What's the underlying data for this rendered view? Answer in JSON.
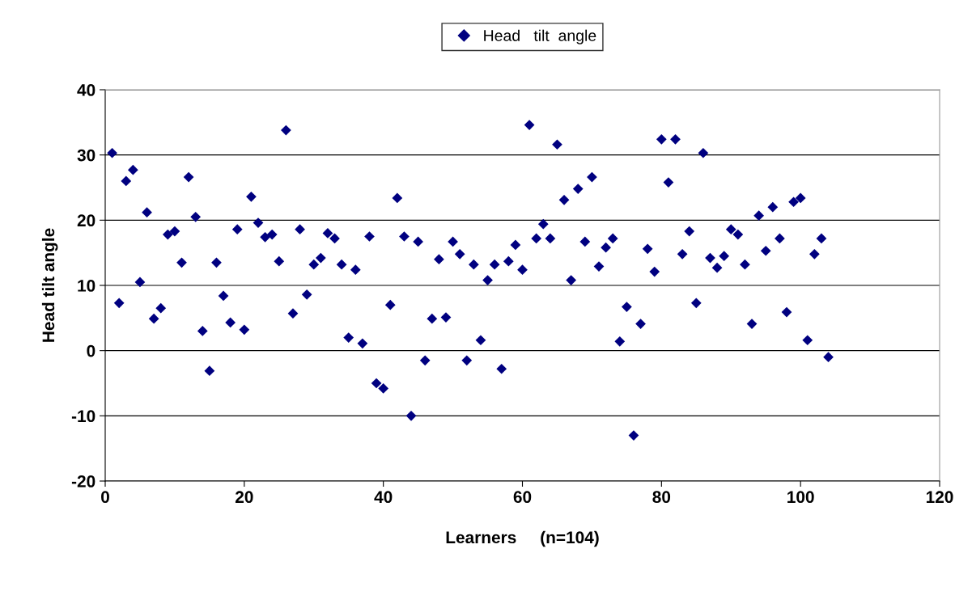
{
  "chart_data": {
    "type": "scatter",
    "xlabel": "Learners     (n=104)",
    "ylabel": "Head tilt angle",
    "x": [
      1,
      2,
      3,
      4,
      5,
      6,
      7,
      8,
      9,
      10,
      11,
      12,
      13,
      14,
      15,
      16,
      17,
      18,
      19,
      20,
      21,
      22,
      23,
      24,
      25,
      26,
      27,
      28,
      29,
      30,
      31,
      32,
      33,
      34,
      35,
      36,
      37,
      38,
      39,
      40,
      41,
      42,
      43,
      44,
      45,
      46,
      47,
      48,
      49,
      50,
      51,
      52,
      53,
      54,
      55,
      56,
      57,
      58,
      59,
      60,
      61,
      62,
      63,
      64,
      65,
      66,
      67,
      68,
      69,
      70,
      71,
      72,
      73,
      74,
      75,
      76,
      77,
      78,
      79,
      80,
      81,
      82,
      83,
      84,
      85,
      86,
      87,
      88,
      89,
      90,
      91,
      92,
      93,
      94,
      95,
      96,
      97,
      98,
      99,
      100,
      101,
      102,
      103,
      104
    ],
    "series": [
      {
        "name": "Head   tilt  angle",
        "color": "#000080",
        "values": [
          30.3,
          7.3,
          26,
          27.7,
          10.5,
          21.2,
          4.9,
          6.5,
          17.8,
          18.3,
          13.5,
          26.6,
          20.5,
          3,
          -3.1,
          13.5,
          8.4,
          4.3,
          18.6,
          3.2,
          23.6,
          19.6,
          17.4,
          17.8,
          13.7,
          33.8,
          5.7,
          18.6,
          8.6,
          13.2,
          14.2,
          18,
          17.2,
          13.2,
          2,
          12.4,
          1.1,
          17.5,
          -5,
          -5.8,
          7,
          23.4,
          17.5,
          -10,
          16.7,
          -1.5,
          4.9,
          14,
          5.1,
          16.7,
          14.8,
          -1.5,
          13.2,
          1.6,
          10.8,
          13.2,
          -2.8,
          13.7,
          16.2,
          12.4,
          34.6,
          17.2,
          19.4,
          17.2,
          31.6,
          23.1,
          10.8,
          24.8,
          16.7,
          26.6,
          12.9,
          15.8,
          17.2,
          1.4,
          6.7,
          -13,
          4.1,
          15.6,
          12.1,
          32.4,
          25.8,
          32.4,
          14.8,
          18.3,
          7.3,
          30.3,
          14.2,
          12.7,
          14.5,
          18.6,
          17.8,
          13.2,
          4.1,
          20.7,
          15.3,
          22,
          17.2,
          5.9,
          22.8,
          23.4,
          1.6,
          14.8,
          17.2,
          -1
        ]
      }
    ],
    "xlim": [
      0,
      120
    ],
    "xticks": [
      0,
      20,
      40,
      60,
      80,
      100,
      120
    ],
    "ylim": [
      -20,
      40
    ],
    "yticks": [
      -20,
      -10,
      0,
      10,
      20,
      30,
      40
    ],
    "grid": "y",
    "legend": "top",
    "marker": "diamond"
  }
}
